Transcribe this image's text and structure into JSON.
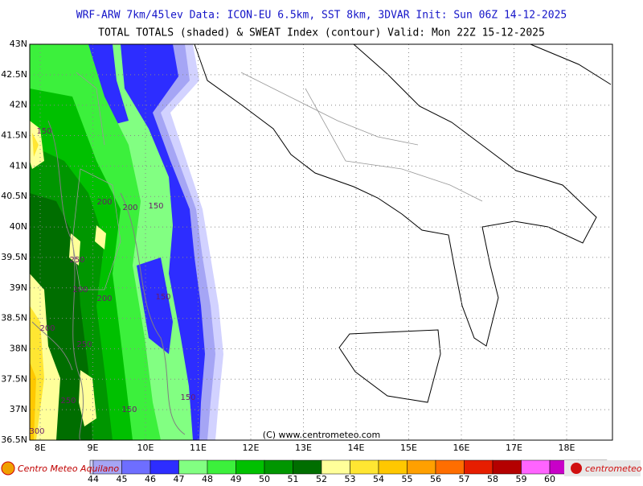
{
  "header": {
    "line1": "WRF-ARW 7km/45lev   Data: ICON-EU 6.5km, SST 8km, 3DVAR   Init: Sun 06Z 14-12-2025",
    "line2": "TOTAL TOTALS (shaded) & SWEAT Index (contour)  Valid: Mon 22Z 15-12-2025"
  },
  "map": {
    "lat_labels": [
      "43N",
      "42.5N",
      "42N",
      "41.5N",
      "41N",
      "40.5N",
      "40N",
      "39.5N",
      "39N",
      "38.5N",
      "38N",
      "37.5N",
      "37N",
      "36.5N"
    ],
    "lon_labels": [
      "8E",
      "9E",
      "10E",
      "11E",
      "12E",
      "13E",
      "14E",
      "15E",
      "16E",
      "17E",
      "18E"
    ],
    "contour_labels": [
      "150",
      "200",
      "200",
      "150",
      "250",
      "200",
      "200",
      "150",
      "200",
      "250",
      "250",
      "150",
      "150",
      "300"
    ],
    "credit": "(C) www.centrometeo.com"
  },
  "legend": {
    "labels": [
      "44",
      "45",
      "46",
      "47",
      "48",
      "49",
      "50",
      "51",
      "52",
      "53",
      "54",
      "55",
      "56",
      "57",
      "58",
      "59",
      "60"
    ],
    "colors": [
      "#d2d2ff",
      "#a5a5f5",
      "#6e6eff",
      "#2d2dff",
      "#82ff82",
      "#3cf03c",
      "#00c000",
      "#009600",
      "#006e00",
      "#ffff9a",
      "#ffe632",
      "#ffc800",
      "#ffa000",
      "#ff6e00",
      "#e61e00",
      "#b40000",
      "#ff64ff",
      "#c800c8",
      "#8c008c"
    ]
  },
  "logos": {
    "left": "Centro Meteo Aquilano",
    "right": "centrometeo"
  }
}
